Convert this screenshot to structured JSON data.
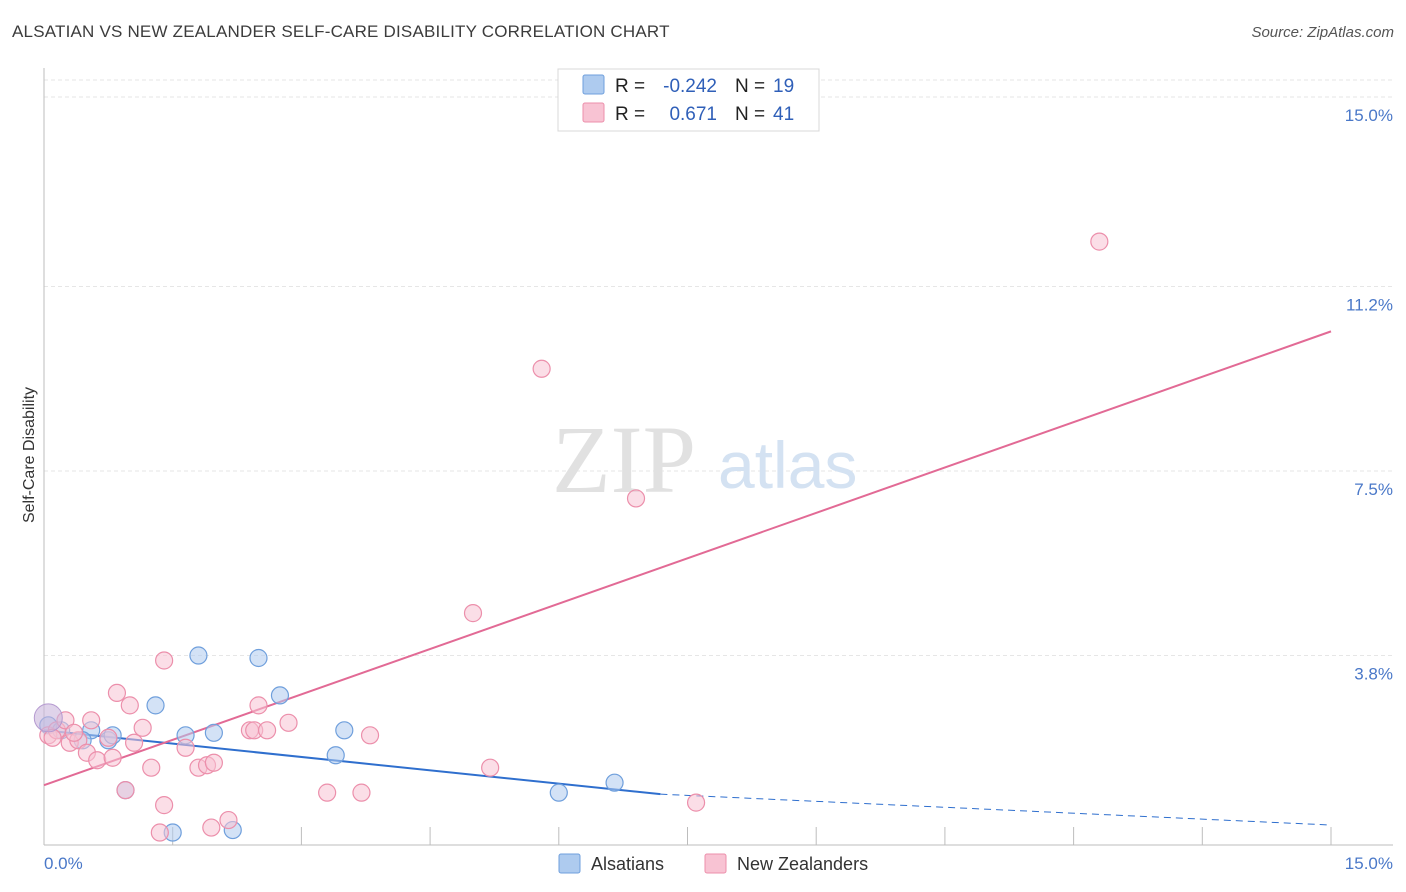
{
  "title": "ALSATIAN VS NEW ZEALANDER SELF-CARE DISABILITY CORRELATION CHART",
  "source": "Source: ZipAtlas.com",
  "watermark": {
    "zip": "ZIP",
    "atlas": "atlas"
  },
  "colors": {
    "alsatian_fill": "#aecbef",
    "alsatian_stroke": "#6f9fdc",
    "alsatian_line": "#2f6fce",
    "nz_fill": "#f8c3d3",
    "nz_stroke": "#ec8fab",
    "nz_line": "#e26a95",
    "grid": "#e6e6e6",
    "tick_text": "#4a78c8"
  },
  "legend": {
    "rows": [
      {
        "r_label": "R =",
        "r_value": "-0.242",
        "n_label": "N =",
        "n_value": "19"
      },
      {
        "r_label": "R =",
        "r_value": "0.671",
        "n_label": "N =",
        "n_value": "41"
      }
    ]
  },
  "bottom_legend": [
    "Alsatians",
    "New Zealanders"
  ],
  "chart_data": {
    "type": "scatter",
    "title": "ALSATIAN VS NEW ZEALANDER SELF-CARE DISABILITY CORRELATION CHART",
    "xlabel": "",
    "ylabel": "Self-Care Disability",
    "xlim": [
      0,
      15
    ],
    "ylim": [
      0,
      15
    ],
    "x_tick_labels": [
      "0.0%",
      "15.0%"
    ],
    "y_ticks": [
      3.8,
      7.5,
      11.2,
      15.0
    ],
    "y_tick_labels": [
      "3.8%",
      "7.5%",
      "11.2%",
      "15.0%"
    ],
    "series": [
      {
        "name": "Alsatians",
        "r": -0.242,
        "n": 19,
        "points": [
          [
            0.05,
            2.4
          ],
          [
            0.2,
            2.3
          ],
          [
            0.55,
            2.3
          ],
          [
            0.75,
            2.1
          ],
          [
            0.8,
            2.2
          ],
          [
            0.95,
            1.1
          ],
          [
            1.3,
            2.8
          ],
          [
            1.5,
            0.25
          ],
          [
            1.65,
            2.2
          ],
          [
            1.8,
            3.8
          ],
          [
            1.98,
            2.25
          ],
          [
            2.2,
            0.3
          ],
          [
            2.5,
            3.75
          ],
          [
            2.75,
            3.0
          ],
          [
            3.4,
            1.8
          ],
          [
            3.5,
            2.3
          ],
          [
            6.0,
            1.05
          ],
          [
            6.65,
            1.25
          ],
          [
            0.45,
            2.1
          ]
        ],
        "trend": {
          "x1": 0.0,
          "y1": 2.3,
          "x2": 8.0,
          "y2": 1.3,
          "dash_x2": 15.0,
          "dash_y2": 0.4
        }
      },
      {
        "name": "New Zealanders",
        "r": 0.671,
        "n": 41,
        "points": [
          [
            0.05,
            2.2
          ],
          [
            0.15,
            2.3
          ],
          [
            0.25,
            2.5
          ],
          [
            0.3,
            2.05
          ],
          [
            0.4,
            2.1
          ],
          [
            0.5,
            1.85
          ],
          [
            0.55,
            2.5
          ],
          [
            0.62,
            1.7
          ],
          [
            0.75,
            2.15
          ],
          [
            0.8,
            1.75
          ],
          [
            0.85,
            3.05
          ],
          [
            1.0,
            2.8
          ],
          [
            1.05,
            2.05
          ],
          [
            1.15,
            2.35
          ],
          [
            1.25,
            1.55
          ],
          [
            1.35,
            0.25
          ],
          [
            1.4,
            0.8
          ],
          [
            1.4,
            3.7
          ],
          [
            1.65,
            1.95
          ],
          [
            1.8,
            1.55
          ],
          [
            1.9,
            1.6
          ],
          [
            1.95,
            0.35
          ],
          [
            1.98,
            1.65
          ],
          [
            2.15,
            0.5
          ],
          [
            2.4,
            2.3
          ],
          [
            2.45,
            2.3
          ],
          [
            2.5,
            2.8
          ],
          [
            2.85,
            2.45
          ],
          [
            3.3,
            1.05
          ],
          [
            3.7,
            1.05
          ],
          [
            3.8,
            2.2
          ],
          [
            5.0,
            4.65
          ],
          [
            5.2,
            1.55
          ],
          [
            5.8,
            9.55
          ],
          [
            6.9,
            6.95
          ],
          [
            7.6,
            0.85
          ],
          [
            12.3,
            12.1
          ],
          [
            0.1,
            2.15
          ],
          [
            0.35,
            2.25
          ],
          [
            0.95,
            1.1
          ],
          [
            2.6,
            2.3
          ]
        ],
        "trend": {
          "x1": 0.0,
          "y1": 1.2,
          "x2": 15.0,
          "y2": 10.3
        }
      }
    ],
    "grid": true,
    "legend_position": "top-center"
  }
}
